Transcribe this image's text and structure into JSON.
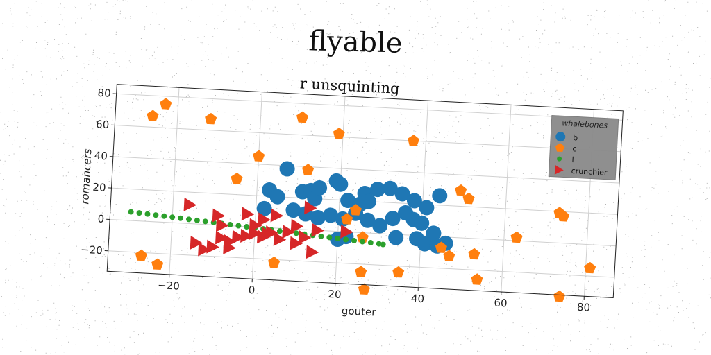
{
  "page": {
    "title": "flyable"
  },
  "chart_data": {
    "type": "scatter",
    "title": "r unsquinting",
    "xlabel": "gouter",
    "ylabel": "romancers",
    "xlim": [
      -35,
      87
    ],
    "ylim": [
      -33,
      86
    ],
    "xticks": [
      -20,
      0,
      20,
      40,
      60,
      80
    ],
    "yticks": [
      -20,
      0,
      20,
      40,
      60,
      80
    ],
    "xtick_labels": [
      "−20",
      "0",
      "20",
      "40",
      "60",
      "80"
    ],
    "ytick_labels": [
      "−20",
      "0",
      "20",
      "40",
      "60",
      "80"
    ],
    "grid": true,
    "legend": {
      "title": "whalebones",
      "position": "top-right",
      "entries": [
        "b",
        "c",
        "l",
        "crunchier"
      ]
    },
    "series": [
      {
        "name": "b",
        "marker": "circle",
        "color": "#1f77b4",
        "points": [
          [
            7,
            38
          ],
          [
            3,
            24
          ],
          [
            5,
            20
          ],
          [
            11,
            24
          ],
          [
            13,
            25
          ],
          [
            14,
            20
          ],
          [
            15,
            27
          ],
          [
            19,
            32
          ],
          [
            20,
            30
          ],
          [
            22,
            20
          ],
          [
            26,
            25
          ],
          [
            29,
            28
          ],
          [
            32,
            29
          ],
          [
            35,
            26
          ],
          [
            38,
            22
          ],
          [
            41,
            18
          ],
          [
            44,
            26
          ],
          [
            2,
            12
          ],
          [
            9,
            12
          ],
          [
            12,
            10
          ],
          [
            15,
            8
          ],
          [
            18,
            10
          ],
          [
            21,
            8
          ],
          [
            24,
            12
          ],
          [
            27,
            8
          ],
          [
            30,
            5
          ],
          [
            33,
            10
          ],
          [
            36,
            14
          ],
          [
            38,
            10
          ],
          [
            40,
            8
          ],
          [
            43,
            2
          ],
          [
            25,
            18
          ],
          [
            27,
            20
          ],
          [
            34,
            -2
          ],
          [
            39,
            -2
          ],
          [
            41,
            -5
          ],
          [
            44,
            -6
          ],
          [
            46,
            -4
          ],
          [
            22,
            -3
          ],
          [
            20,
            -5
          ]
        ]
      },
      {
        "name": "c",
        "marker": "pentagon",
        "color": "#ff7f0e",
        "points": [
          [
            -23,
            75
          ],
          [
            -26,
            67
          ],
          [
            -12,
            67
          ],
          [
            10,
            71
          ],
          [
            19,
            62
          ],
          [
            37,
            60
          ],
          [
            0,
            45
          ],
          [
            12,
            38
          ],
          [
            -5,
            30
          ],
          [
            49,
            30
          ],
          [
            51,
            25
          ],
          [
            73,
            19
          ],
          [
            74,
            17
          ],
          [
            24,
            14
          ],
          [
            22,
            8
          ],
          [
            63,
            2
          ],
          [
            26,
            -3
          ],
          [
            45,
            -7
          ],
          [
            47,
            -12
          ],
          [
            53,
            -10
          ],
          [
            81,
            -15
          ],
          [
            -27,
            -22
          ],
          [
            -23,
            -27
          ],
          [
            5,
            -22
          ],
          [
            26,
            -25
          ],
          [
            35,
            -24
          ],
          [
            54,
            -26
          ],
          [
            74,
            -34
          ],
          [
            27,
            -36
          ]
        ]
      },
      {
        "name": "l",
        "marker": "dot",
        "color": "#2ca02c",
        "points": [
          [
            -30,
            5.5
          ],
          [
            -28,
            5.1
          ],
          [
            -26,
            4.7
          ],
          [
            -24,
            4.3
          ],
          [
            -22,
            3.9
          ],
          [
            -20,
            3.5
          ],
          [
            -18,
            3.1
          ],
          [
            -16,
            2.7
          ],
          [
            -14,
            2.3
          ],
          [
            -12,
            1.9
          ],
          [
            -10,
            1.5
          ],
          [
            -8,
            1.1
          ],
          [
            -6,
            0.7
          ],
          [
            -4,
            0.3
          ],
          [
            -2,
            -0.1
          ],
          [
            0,
            -0.5
          ],
          [
            2,
            -0.9
          ],
          [
            4,
            -1.3
          ],
          [
            6,
            -1.7
          ],
          [
            8,
            -2.1
          ],
          [
            10,
            -2.5
          ],
          [
            12,
            -2.9
          ],
          [
            14,
            -3.3
          ],
          [
            16,
            -3.7
          ],
          [
            18,
            -4.1
          ],
          [
            20,
            -4.5
          ],
          [
            22,
            -4.9
          ],
          [
            24,
            -5.3
          ],
          [
            26,
            -5.7
          ],
          [
            28,
            -6.1
          ],
          [
            30,
            -6.5
          ],
          [
            31,
            -6.8
          ]
        ]
      },
      {
        "name": "crunchier",
        "marker": "triangle-right",
        "color": "#d62728",
        "points": [
          [
            -16,
            12
          ],
          [
            -9,
            6
          ],
          [
            -8,
            0
          ],
          [
            -2,
            8
          ],
          [
            2,
            5
          ],
          [
            5,
            8
          ],
          [
            10,
            2
          ],
          [
            13,
            14
          ],
          [
            15,
            0
          ],
          [
            22,
            0
          ],
          [
            -14,
            -12
          ],
          [
            -10,
            -14
          ],
          [
            -8,
            -8
          ],
          [
            -6,
            -10
          ],
          [
            -4,
            -7
          ],
          [
            -2,
            -6
          ],
          [
            0,
            -4
          ],
          [
            2,
            -6
          ],
          [
            4,
            -3
          ],
          [
            6,
            -7
          ],
          [
            8,
            -2
          ],
          [
            10,
            -9
          ],
          [
            12,
            -5
          ],
          [
            14,
            -14
          ],
          [
            -12,
            -16
          ],
          [
            -6,
            -14
          ],
          [
            0,
            1
          ],
          [
            3,
            -4
          ]
        ]
      }
    ]
  }
}
